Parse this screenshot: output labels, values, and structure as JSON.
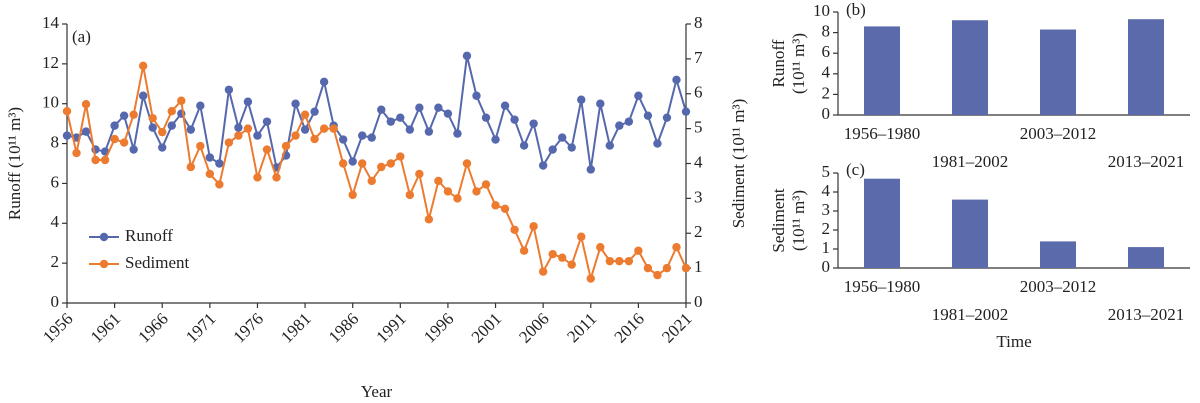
{
  "chart_data": [
    {
      "type": "line",
      "annotation": "(a)",
      "xlabel": "Year",
      "ylabel": "Runoff (10¹¹ m³)",
      "y2label": "Sediment (10¹¹ m³)",
      "x": [
        1956,
        1957,
        1958,
        1959,
        1960,
        1961,
        1962,
        1963,
        1964,
        1965,
        1966,
        1967,
        1968,
        1969,
        1970,
        1971,
        1972,
        1973,
        1974,
        1975,
        1976,
        1977,
        1978,
        1979,
        1980,
        1981,
        1982,
        1983,
        1984,
        1985,
        1986,
        1987,
        1988,
        1989,
        1990,
        1991,
        1992,
        1993,
        1994,
        1995,
        1996,
        1997,
        1998,
        1999,
        2000,
        2001,
        2002,
        2003,
        2004,
        2005,
        2006,
        2007,
        2008,
        2009,
        2010,
        2011,
        2012,
        2013,
        2014,
        2015,
        2016,
        2017,
        2018,
        2019,
        2020,
        2021
      ],
      "xlim": [
        1956,
        2021
      ],
      "xticks": [
        1956,
        1961,
        1966,
        1971,
        1976,
        1981,
        1986,
        1991,
        1996,
        2001,
        2006,
        2011,
        2016,
        2021
      ],
      "ylim": [
        0,
        14
      ],
      "yticks": [
        0,
        2,
        4,
        6,
        8,
        10,
        12,
        14
      ],
      "y2lim": [
        0,
        8
      ],
      "y2ticks": [
        0,
        1,
        2,
        3,
        4,
        5,
        6,
        7,
        8
      ],
      "legend": "lower left",
      "series": [
        {
          "name": "Runoff",
          "color": "#5568ad",
          "values": [
            8.4,
            8.3,
            8.6,
            7.7,
            7.6,
            8.9,
            9.4,
            7.7,
            10.4,
            8.8,
            7.8,
            8.9,
            9.5,
            8.7,
            9.9,
            7.3,
            7.0,
            10.7,
            8.8,
            10.1,
            8.4,
            9.1,
            6.8,
            7.4,
            10.0,
            8.7,
            9.6,
            11.1,
            8.9,
            8.2,
            7.1,
            8.4,
            8.3,
            9.7,
            9.1,
            9.3,
            8.7,
            9.8,
            8.6,
            9.8,
            9.5,
            8.5,
            12.4,
            10.4,
            9.3,
            8.2,
            9.9,
            9.2,
            7.9,
            9.0,
            6.9,
            7.7,
            8.3,
            7.8,
            10.2,
            6.7,
            10.0,
            7.9,
            8.9,
            9.1,
            10.4,
            9.4,
            8.0,
            9.3,
            11.2,
            9.6
          ]
        },
        {
          "name": "Sediment",
          "color": "#ec7b30",
          "axis": "y2",
          "values": [
            5.5,
            4.3,
            5.7,
            4.1,
            4.1,
            4.7,
            4.6,
            5.4,
            6.8,
            5.3,
            4.9,
            5.5,
            5.8,
            3.9,
            4.5,
            3.7,
            3.4,
            4.6,
            4.8,
            5.0,
            3.6,
            4.4,
            3.6,
            4.5,
            4.8,
            5.4,
            4.7,
            5.0,
            5.0,
            4.0,
            3.1,
            4.0,
            3.5,
            3.9,
            4.0,
            4.2,
            3.1,
            3.7,
            2.4,
            3.5,
            3.2,
            3.0,
            4.0,
            3.2,
            3.4,
            2.8,
            2.7,
            2.1,
            1.5,
            2.2,
            0.9,
            1.4,
            1.3,
            1.1,
            1.9,
            0.7,
            1.6,
            1.2,
            1.2,
            1.2,
            1.5,
            1.0,
            0.8,
            1.0,
            1.6,
            1.0
          ]
        }
      ]
    },
    {
      "type": "bar",
      "annotation": "(b)",
      "ylabel": [
        "Runoff",
        "(10¹¹ m³)"
      ],
      "categories": [
        "1956–1980",
        "1981–2002",
        "2003–2012",
        "2013–2021"
      ],
      "values": [
        8.6,
        9.2,
        8.3,
        9.3
      ],
      "color": "#5a6aab",
      "ylim": [
        0,
        10
      ],
      "yticks": [
        0,
        2,
        4,
        6,
        8,
        10
      ]
    },
    {
      "type": "bar",
      "annotation": "(c)",
      "xlabel": "Time",
      "ylabel": [
        "Sediment",
        "(10¹¹ m³)"
      ],
      "categories": [
        "1956–1980",
        "1981–2002",
        "2003–2012",
        "2013–2021"
      ],
      "values": [
        4.7,
        3.6,
        1.4,
        1.1
      ],
      "color": "#5a6aab",
      "ylim": [
        0,
        5
      ],
      "yticks": [
        0,
        1,
        2,
        3,
        4,
        5
      ]
    }
  ]
}
